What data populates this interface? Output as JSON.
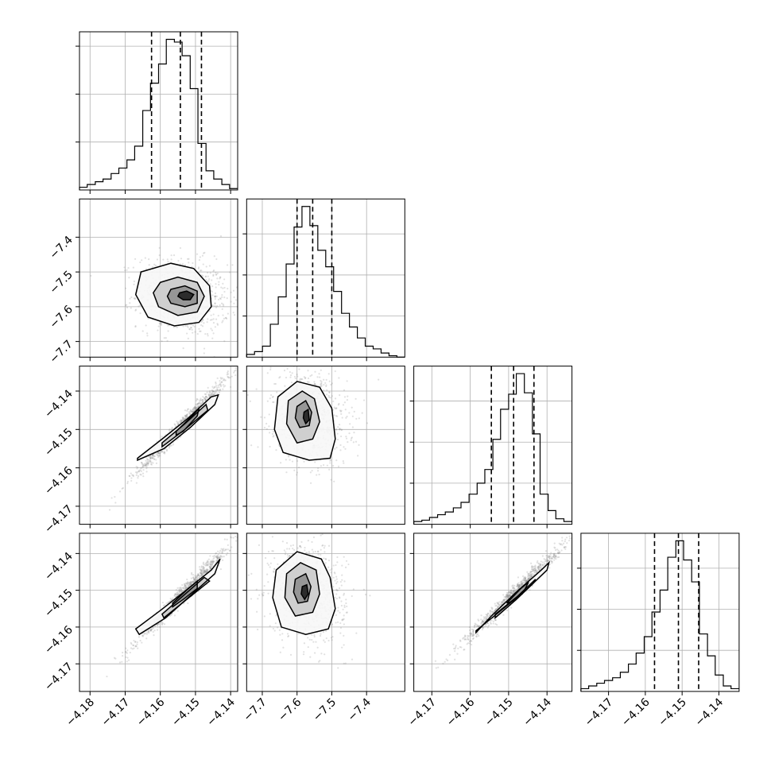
{
  "chart_data": {
    "type": "corner",
    "grid": true,
    "params": [
      {
        "range": [
          -4.183,
          -4.138
        ],
        "ticks": [
          -4.18,
          -4.17,
          -4.16,
          -4.15,
          -4.14
        ],
        "tick_labels": [
          "−4.18",
          "−4.17",
          "−4.16",
          "−4.15",
          "−4.14"
        ]
      },
      {
        "range": [
          -7.745,
          -7.29
        ],
        "ticks": [
          -7.7,
          -7.6,
          -7.5,
          -7.4
        ],
        "tick_labels": [
          "−7.7",
          "−7.6",
          "−7.5",
          "−7.4"
        ]
      },
      {
        "range": [
          -4.1747,
          -4.1335
        ],
        "ticks": [
          -4.17,
          -4.16,
          -4.15,
          -4.14
        ],
        "tick_labels": [
          "−4.17",
          "−4.16",
          "−4.15",
          "−4.14"
        ]
      },
      {
        "range": [
          -4.1775,
          -4.1345
        ],
        "ticks": [
          -4.17,
          -4.16,
          -4.15,
          -4.14
        ],
        "tick_labels": [
          "−4.17",
          "−4.16",
          "−4.15",
          "−4.14"
        ]
      }
    ],
    "histograms": [
      {
        "bin_edges": [
          -4.183,
          -4.1808,
          -4.1785,
          -4.1763,
          -4.174,
          -4.1718,
          -4.1695,
          -4.1673,
          -4.165,
          -4.1628,
          -4.1605,
          -4.1583,
          -4.156,
          -4.1538,
          -4.1515,
          -4.1493,
          -4.147,
          -4.1448,
          -4.1425,
          -4.1403,
          -4.138
        ],
        "counts": [
          2,
          4,
          6,
          8,
          12,
          16,
          22,
          32,
          58,
          78,
          92,
          110,
          108,
          98,
          74,
          34,
          14,
          8,
          4,
          1
        ],
        "quantiles": [
          -4.1625,
          -4.1543,
          -4.1483
        ],
        "yticks": [
          35,
          70,
          105
        ]
      },
      {
        "bin_edges": [
          -7.745,
          -7.7223,
          -7.6995,
          -7.6768,
          -7.654,
          -7.6313,
          -7.6085,
          -7.5858,
          -7.563,
          -7.5403,
          -7.5175,
          -7.4948,
          -7.472,
          -7.4493,
          -7.4265,
          -7.4038,
          -7.381,
          -7.3583,
          -7.3355,
          -7.3128,
          -7.29
        ],
        "counts": [
          2,
          4,
          8,
          24,
          44,
          68,
          95,
          110,
          96,
          78,
          66,
          48,
          32,
          22,
          14,
          8,
          6,
          3,
          1,
          0
        ],
        "quantiles": [
          -7.6,
          -7.555,
          -7.5
        ],
        "yticks": [
          30,
          60,
          90
        ]
      },
      {
        "bin_edges": [
          -4.1747,
          -4.1726,
          -4.1706,
          -4.1685,
          -4.1665,
          -4.1644,
          -4.1624,
          -4.1603,
          -4.1582,
          -4.1562,
          -4.1541,
          -4.1521,
          -4.15,
          -4.148,
          -4.1459,
          -4.1438,
          -4.1418,
          -4.1397,
          -4.1377,
          -4.1356,
          -4.1335
        ],
        "counts": [
          2,
          3,
          5,
          7,
          9,
          12,
          16,
          22,
          30,
          40,
          62,
          84,
          95,
          110,
          96,
          66,
          22,
          10,
          4,
          2
        ],
        "quantiles": [
          -4.1545,
          -4.1487,
          -4.1434
        ],
        "yticks": [
          30,
          60,
          90
        ]
      },
      {
        "bin_edges": [
          -4.1775,
          -4.1754,
          -4.1732,
          -4.1711,
          -4.1689,
          -4.1668,
          -4.1646,
          -4.1625,
          -4.1603,
          -4.1582,
          -4.156,
          -4.1539,
          -4.1517,
          -4.1496,
          -4.1474,
          -4.1453,
          -4.1431,
          -4.141,
          -4.1388,
          -4.1367,
          -4.1345
        ],
        "counts": [
          2,
          4,
          6,
          8,
          10,
          14,
          20,
          28,
          40,
          58,
          74,
          98,
          110,
          96,
          80,
          42,
          26,
          12,
          4,
          2
        ],
        "quantiles": [
          -4.1575,
          -4.151,
          -4.1455
        ],
        "yticks": [
          30,
          60,
          90
        ]
      }
    ],
    "pairs": [
      {
        "row": 1,
        "col": 0,
        "rho": -0.15,
        "mean": [
          -4.1535,
          -7.57
        ],
        "sd": [
          0.0065,
          0.055
        ],
        "contours": [
          [
            [
              -4.1655,
              -7.5
            ],
            [
              -4.157,
              -7.475
            ],
            [
              -4.1505,
              -7.49
            ],
            [
              -4.146,
              -7.54
            ],
            [
              -4.1455,
              -7.6
            ],
            [
              -4.149,
              -7.645
            ],
            [
              -4.156,
              -7.655
            ],
            [
              -4.1635,
              -7.63
            ],
            [
              -4.167,
              -7.565
            ],
            [
              -4.1655,
              -7.5
            ]
          ],
          [
            [
              -4.16,
              -7.53
            ],
            [
              -4.155,
              -7.515
            ],
            [
              -4.1495,
              -7.53
            ],
            [
              -4.1475,
              -7.57
            ],
            [
              -4.1495,
              -7.615
            ],
            [
              -4.155,
              -7.625
            ],
            [
              -4.1605,
              -7.6
            ],
            [
              -4.162,
              -7.56
            ],
            [
              -4.16,
              -7.53
            ]
          ],
          [
            [
              -4.157,
              -7.55
            ],
            [
              -4.153,
              -7.54
            ],
            [
              -4.1495,
              -7.555
            ],
            [
              -4.1495,
              -7.59
            ],
            [
              -4.153,
              -7.6
            ],
            [
              -4.157,
              -7.59
            ],
            [
              -4.158,
              -7.57
            ],
            [
              -4.157,
              -7.55
            ]
          ],
          [
            [
              -4.1545,
              -7.56
            ],
            [
              -4.1525,
              -7.555
            ],
            [
              -4.1505,
              -7.565
            ],
            [
              -4.1515,
              -7.58
            ],
            [
              -4.1535,
              -7.58
            ],
            [
              -4.155,
              -7.57
            ],
            [
              -4.1545,
              -7.56
            ]
          ]
        ]
      },
      {
        "row": 2,
        "col": 0,
        "rho": 0.985,
        "mean": [
          -4.1535,
          -4.1487
        ],
        "sd": [
          0.0065,
          0.0063
        ],
        "contours": [
          [
            [
              -4.1665,
              -4.1575
            ],
            [
              -4.1595,
              -4.1525
            ],
            [
              -4.152,
              -4.147
            ],
            [
              -4.1455,
              -4.1415
            ],
            [
              -4.1435,
              -4.141
            ],
            [
              -4.1445,
              -4.1435
            ],
            [
              -4.1515,
              -4.1495
            ],
            [
              -4.159,
              -4.155
            ],
            [
              -4.1665,
              -4.158
            ],
            [
              -4.1665,
              -4.1575
            ]
          ],
          [
            [
              -4.1595,
              -4.1535
            ],
            [
              -4.153,
              -4.1485
            ],
            [
              -4.147,
              -4.1435
            ],
            [
              -4.1465,
              -4.145
            ],
            [
              -4.153,
              -4.15
            ],
            [
              -4.1595,
              -4.1545
            ],
            [
              -4.1595,
              -4.1535
            ]
          ],
          [
            [
              -4.1555,
              -4.1505
            ],
            [
              -4.151,
              -4.1465
            ],
            [
              -4.149,
              -4.1445
            ],
            [
              -4.1495,
              -4.1465
            ],
            [
              -4.1535,
              -4.1505
            ],
            [
              -4.1555,
              -4.1515
            ],
            [
              -4.1555,
              -4.1505
            ]
          ]
        ]
      },
      {
        "row": 2,
        "col": 1,
        "rho": -0.15,
        "mean": [
          -7.565,
          -4.1467
        ],
        "sd": [
          0.055,
          0.006
        ],
        "contours": [
          [
            [
              -7.655,
              -4.1415
            ],
            [
              -7.6,
              -4.1375
            ],
            [
              -7.535,
              -4.139
            ],
            [
              -7.5,
              -4.1445
            ],
            [
              -7.49,
              -4.1525
            ],
            [
              -7.505,
              -4.1575
            ],
            [
              -7.565,
              -4.158
            ],
            [
              -7.64,
              -4.156
            ],
            [
              -7.665,
              -4.15
            ],
            [
              -7.655,
              -4.1415
            ]
          ],
          [
            [
              -7.625,
              -4.1425
            ],
            [
              -7.585,
              -4.14
            ],
            [
              -7.55,
              -4.142
            ],
            [
              -7.535,
              -4.148
            ],
            [
              -7.555,
              -4.1525
            ],
            [
              -7.6,
              -4.1535
            ],
            [
              -7.63,
              -4.1485
            ],
            [
              -7.625,
              -4.1425
            ]
          ],
          [
            [
              -7.6,
              -4.144
            ],
            [
              -7.575,
              -4.1425
            ],
            [
              -7.558,
              -4.1455
            ],
            [
              -7.565,
              -4.149
            ],
            [
              -7.592,
              -4.1495
            ],
            [
              -7.605,
              -4.147
            ],
            [
              -7.6,
              -4.144
            ]
          ],
          [
            [
              -7.58,
              -4.1455
            ],
            [
              -7.568,
              -4.1448
            ],
            [
              -7.565,
              -4.1475
            ],
            [
              -7.575,
              -4.1485
            ],
            [
              -7.582,
              -4.147
            ],
            [
              -7.58,
              -4.1455
            ]
          ]
        ]
      },
      {
        "row": 3,
        "col": 0,
        "rho": 0.985,
        "mean": [
          -4.1535,
          -4.151
        ],
        "sd": [
          0.0065,
          0.0065
        ],
        "contours": [
          [
            [
              -4.167,
              -4.1605
            ],
            [
              -4.16,
              -4.1555
            ],
            [
              -4.152,
              -4.1495
            ],
            [
              -4.1455,
              -4.1445
            ],
            [
              -4.143,
              -4.1415
            ],
            [
              -4.1445,
              -4.1455
            ],
            [
              -4.1515,
              -4.1515
            ],
            [
              -4.1585,
              -4.1575
            ],
            [
              -4.166,
              -4.162
            ],
            [
              -4.167,
              -4.1605
            ]
          ],
          [
            [
              -4.1595,
              -4.1565
            ],
            [
              -4.1535,
              -4.1515
            ],
            [
              -4.1475,
              -4.1465
            ],
            [
              -4.146,
              -4.1475
            ],
            [
              -4.1525,
              -4.1525
            ],
            [
              -4.159,
              -4.1575
            ],
            [
              -4.1595,
              -4.1565
            ]
          ],
          [
            [
              -4.1565,
              -4.1535
            ],
            [
              -4.152,
              -4.1495
            ],
            [
              -4.1495,
              -4.1475
            ],
            [
              -4.1495,
              -4.1495
            ],
            [
              -4.1535,
              -4.1525
            ],
            [
              -4.1565,
              -4.1545
            ],
            [
              -4.1565,
              -4.1535
            ]
          ]
        ]
      },
      {
        "row": 3,
        "col": 1,
        "rho": -0.15,
        "mean": [
          -7.57,
          -4.1505
        ],
        "sd": [
          0.055,
          0.0065
        ],
        "contours": [
          [
            [
              -7.66,
              -4.1445
            ],
            [
              -7.6,
              -4.1395
            ],
            [
              -7.53,
              -4.1415
            ],
            [
              -7.505,
              -4.1465
            ],
            [
              -7.49,
              -4.155
            ],
            [
              -7.51,
              -4.1605
            ],
            [
              -7.575,
              -4.162
            ],
            [
              -7.645,
              -4.16
            ],
            [
              -7.67,
              -4.152
            ],
            [
              -7.66,
              -4.1445
            ]
          ],
          [
            [
              -7.63,
              -4.1455
            ],
            [
              -7.59,
              -4.1425
            ],
            [
              -7.545,
              -4.1445
            ],
            [
              -7.535,
              -4.151
            ],
            [
              -7.555,
              -4.156
            ],
            [
              -7.605,
              -4.157
            ],
            [
              -7.635,
              -4.152
            ],
            [
              -7.63,
              -4.1455
            ]
          ],
          [
            [
              -7.605,
              -4.147
            ],
            [
              -7.575,
              -4.1455
            ],
            [
              -7.56,
              -4.149
            ],
            [
              -7.57,
              -4.153
            ],
            [
              -7.597,
              -4.1535
            ],
            [
              -7.61,
              -4.1505
            ],
            [
              -7.605,
              -4.147
            ]
          ],
          [
            [
              -7.585,
              -4.149
            ],
            [
              -7.572,
              -4.1485
            ],
            [
              -7.568,
              -4.151
            ],
            [
              -7.578,
              -4.1525
            ],
            [
              -7.588,
              -4.151
            ],
            [
              -7.585,
              -4.149
            ]
          ]
        ]
      },
      {
        "row": 3,
        "col": 2,
        "rho": 0.985,
        "mean": [
          -4.1487,
          -4.151
        ],
        "sd": [
          0.0063,
          0.0065
        ],
        "contours": [
          [
            [
              -4.1585,
              -4.161
            ],
            [
              -4.152,
              -4.1555
            ],
            [
              -4.145,
              -4.1495
            ],
            [
              -4.14,
              -4.1445
            ],
            [
              -4.1395,
              -4.1425
            ],
            [
              -4.1415,
              -4.1445
            ],
            [
              -4.148,
              -4.1505
            ],
            [
              -4.1545,
              -4.157
            ],
            [
              -4.1585,
              -4.1615
            ],
            [
              -4.1585,
              -4.161
            ]
          ],
          [
            [
              -4.1535,
              -4.1565
            ],
            [
              -4.1475,
              -4.1515
            ],
            [
              -4.143,
              -4.147
            ],
            [
              -4.1435,
              -4.148
            ],
            [
              -4.148,
              -4.1525
            ],
            [
              -4.1535,
              -4.1575
            ],
            [
              -4.1535,
              -4.1565
            ]
          ],
          [
            [
              -4.1505,
              -4.1535
            ],
            [
              -4.1468,
              -4.1495
            ],
            [
              -4.1448,
              -4.1478
            ],
            [
              -4.1458,
              -4.1498
            ],
            [
              -4.149,
              -4.153
            ],
            [
              -4.1505,
              -4.1535
            ]
          ]
        ]
      }
    ]
  }
}
